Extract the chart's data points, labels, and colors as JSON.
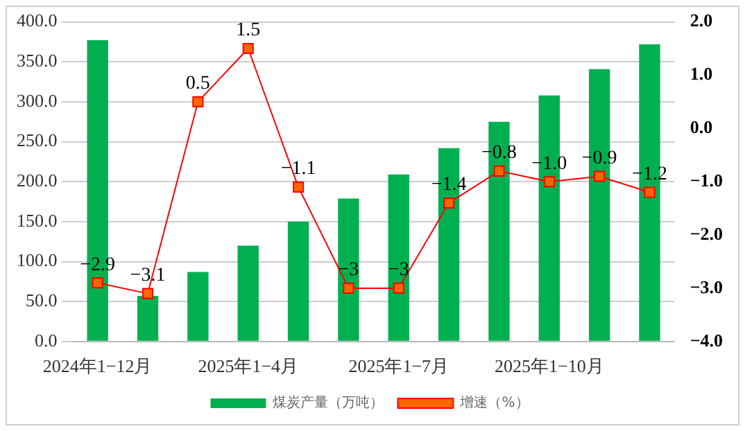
{
  "chart_data": {
    "type": "bar",
    "categories": [
      "2024年1−12月",
      null,
      null,
      "2025年1−4月",
      null,
      null,
      "2025年1−7月",
      null,
      null,
      "2025年1−10月",
      null,
      null
    ],
    "series": [
      {
        "name": "煤炭产量（万吨）",
        "color": "#00b050",
        "values": [
          377,
          57,
          87,
          120,
          150,
          179,
          209,
          242,
          275,
          308,
          341,
          372
        ]
      },
      {
        "name": "增速（%）",
        "type": "line",
        "axis": "y2",
        "color": "#ff6600",
        "marker": "square",
        "values": [
          -2.9,
          -3.1,
          0.5,
          1.5,
          -1.1,
          -3,
          -3,
          -1.4,
          -0.8,
          -1.0,
          -0.9,
          -1.2
        ],
        "value_labels": [
          "−2.9",
          "−3.1",
          "0.5",
          "1.5",
          "−1.1",
          "−3",
          "−3",
          "−1.4",
          "−0.8",
          "−1.0",
          "−0.9",
          "−1.2"
        ]
      }
    ],
    "ylim": [
      0,
      400
    ],
    "yticks": [
      {
        "value": 0,
        "label": "0.0"
      },
      {
        "value": 50,
        "label": "50.0"
      },
      {
        "value": 100,
        "label": "100.0"
      },
      {
        "value": 150,
        "label": "150.0"
      },
      {
        "value": 200,
        "label": "200.0"
      },
      {
        "value": 250,
        "label": "250.0"
      },
      {
        "value": 300,
        "label": "300.0"
      },
      {
        "value": 350,
        "label": "350.0"
      },
      {
        "value": 400,
        "label": "400.0"
      }
    ],
    "y2lim": [
      -4,
      2
    ],
    "y2ticks": [
      {
        "value": -4,
        "label": "−4.0"
      },
      {
        "value": -3,
        "label": "−3.0"
      },
      {
        "value": -2,
        "label": "−2.0"
      },
      {
        "value": -1,
        "label": "−1.0"
      },
      {
        "value": 0,
        "label": "0.0"
      },
      {
        "value": 1,
        "label": "1.0"
      },
      {
        "value": 2,
        "label": "2.0"
      }
    ],
    "grid": "y",
    "legend": "bottom"
  }
}
